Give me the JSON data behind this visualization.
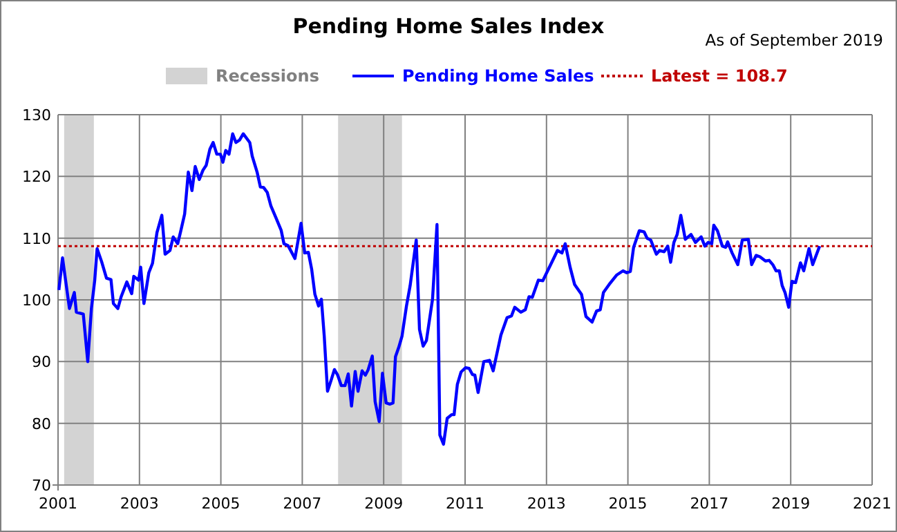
{
  "chart_data": {
    "type": "line",
    "title": "Pending Home Sales Index",
    "subtitle": "As of September 2019",
    "xlim": [
      2001,
      2021
    ],
    "xticks": [
      2001,
      2003,
      2005,
      2007,
      2009,
      2011,
      2013,
      2015,
      2017,
      2019,
      2021
    ],
    "ylim": [
      70,
      130
    ],
    "yticks": [
      70,
      80,
      90,
      100,
      110,
      120,
      130
    ],
    "grid": true,
    "legend": "top",
    "bands": [
      {
        "axis": "x",
        "from": 2001.15,
        "to": 2001.88,
        "label": "Recessions",
        "color": "#d3d3d3"
      },
      {
        "axis": "x",
        "from": 2007.88,
        "to": 2009.45,
        "label": null,
        "color": "#d3d3d3"
      }
    ],
    "ref_lines": [
      {
        "axis": "y",
        "value": 108.7,
        "label": "Latest = 108.7",
        "color": "#c00000",
        "line_style": "dotted"
      }
    ],
    "series": [
      {
        "name": "Pending Home Sales",
        "color": "#0000ff",
        "x": [
          2001.02,
          2001.11,
          2001.28,
          2001.4,
          2001.45,
          2001.62,
          2001.73,
          2001.82,
          2001.9,
          2001.96,
          2002.07,
          2002.19,
          2002.3,
          2002.36,
          2002.47,
          2002.55,
          2002.69,
          2002.81,
          2002.86,
          2002.98,
          2003.03,
          2003.11,
          2003.23,
          2003.32,
          2003.43,
          2003.55,
          2003.63,
          2003.75,
          2003.83,
          2003.94,
          2004.02,
          2004.11,
          2004.2,
          2004.29,
          2004.37,
          2004.47,
          2004.56,
          2004.64,
          2004.73,
          2004.81,
          2004.9,
          2004.99,
          2005.05,
          2005.12,
          2005.2,
          2005.29,
          2005.37,
          2005.46,
          2005.55,
          2005.71,
          2005.77,
          2005.89,
          2005.97,
          2006.05,
          2006.14,
          2006.23,
          2006.36,
          2006.48,
          2006.55,
          2006.65,
          2006.82,
          2006.97,
          2007.06,
          2007.15,
          2007.23,
          2007.31,
          2007.4,
          2007.47,
          2007.54,
          2007.62,
          2007.71,
          2007.79,
          2007.87,
          2007.96,
          2008.05,
          2008.13,
          2008.21,
          2008.3,
          2008.37,
          2008.47,
          2008.55,
          2008.62,
          2008.72,
          2008.79,
          2008.89,
          2008.97,
          2009.06,
          2009.15,
          2009.23,
          2009.29,
          2009.37,
          2009.45,
          2009.56,
          2009.65,
          2009.8,
          2009.88,
          2009.97,
          2010.05,
          2010.2,
          2010.31,
          2010.38,
          2010.47,
          2010.56,
          2010.67,
          2010.73,
          2010.81,
          2010.9,
          2011.01,
          2011.1,
          2011.18,
          2011.24,
          2011.32,
          2011.46,
          2011.6,
          2011.69,
          2011.88,
          2012.03,
          2012.14,
          2012.22,
          2012.37,
          2012.48,
          2012.57,
          2012.65,
          2012.8,
          2012.91,
          2013.16,
          2013.27,
          2013.38,
          2013.46,
          2013.58,
          2013.69,
          2013.86,
          2013.97,
          2014.12,
          2014.23,
          2014.32,
          2014.4,
          2014.54,
          2014.72,
          2014.88,
          2014.97,
          2015.06,
          2015.14,
          2015.28,
          2015.4,
          2015.47,
          2015.56,
          2015.7,
          2015.78,
          2015.89,
          2015.98,
          2016.05,
          2016.13,
          2016.21,
          2016.3,
          2016.41,
          2016.55,
          2016.66,
          2016.8,
          2016.89,
          2016.97,
          2017.06,
          2017.11,
          2017.2,
          2017.32,
          2017.4,
          2017.45,
          2017.56,
          2017.7,
          2017.81,
          2017.96,
          2018.04,
          2018.15,
          2018.24,
          2018.38,
          2018.47,
          2018.56,
          2018.64,
          2018.72,
          2018.79,
          2018.86,
          2018.95,
          2019.03,
          2019.12,
          2019.24,
          2019.32,
          2019.45,
          2019.54,
          2019.71
        ],
        "values": [
          101.6,
          106.8,
          98.6,
          101.2,
          98,
          97.7,
          90,
          98.6,
          103.1,
          108.3,
          106.2,
          103.5,
          103.3,
          99.4,
          98.6,
          100.5,
          102.9,
          101,
          103.8,
          103.2,
          105.3,
          99.4,
          104.4,
          105.9,
          110.9,
          113.7,
          107.4,
          108,
          110.2,
          109.1,
          111.3,
          113.9,
          120.7,
          117.7,
          121.6,
          119.5,
          121,
          121.8,
          124.4,
          125.5,
          123.6,
          123.6,
          122.3,
          124.2,
          123.6,
          126.9,
          125.5,
          125.9,
          126.9,
          125.5,
          123.3,
          120.7,
          118.3,
          118.2,
          117.4,
          115.2,
          113.2,
          111.3,
          109.1,
          108.8,
          106.7,
          112.4,
          107.6,
          107.7,
          105,
          100.9,
          99,
          100.1,
          94.1,
          85.2,
          87,
          88.7,
          87.8,
          86.1,
          86.1,
          88,
          82.8,
          88.4,
          85.2,
          88.5,
          87.8,
          88.7,
          90.9,
          83.5,
          80.3,
          88.1,
          83.3,
          83.1,
          83.3,
          90.8,
          92.3,
          94.1,
          99,
          102.3,
          109.7,
          95.2,
          92.5,
          93.4,
          100.1,
          112.2,
          78.1,
          76.6,
          80.8,
          81.4,
          81.4,
          86.3,
          88.3,
          89,
          88.9,
          87.9,
          87.8,
          85,
          90,
          90.2,
          88.5,
          94.3,
          97.1,
          97.4,
          98.8,
          98,
          98.4,
          100.5,
          100.4,
          103.2,
          103.1,
          106.5,
          108,
          107.6,
          109.1,
          105.3,
          102.5,
          100.9,
          97.3,
          96.4,
          98.2,
          98.4,
          101.2,
          102.5,
          104,
          104.7,
          104.4,
          104.6,
          108.5,
          111.2,
          111,
          110,
          109.7,
          107.4,
          108,
          107.8,
          108.7,
          106.1,
          109.3,
          110.6,
          113.7,
          109.8,
          110.6,
          109.3,
          110.2,
          108.7,
          109.3,
          109.1,
          112.1,
          111.2,
          108.7,
          108.5,
          109.4,
          107.6,
          105.7,
          109.7,
          109.8,
          105.7,
          107.2,
          107,
          106.3,
          106.4,
          105.7,
          104.7,
          104.7,
          102.3,
          101.2,
          98.8,
          103,
          102.8,
          106,
          104.7,
          108.3,
          105.7,
          108.7
        ]
      }
    ]
  }
}
